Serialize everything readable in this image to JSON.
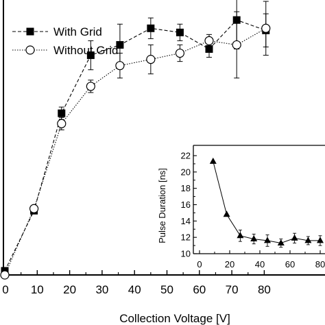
{
  "chart_data": [
    {
      "type": "line",
      "title": "",
      "xlabel": "Collection Voltage [V]",
      "ylabel": "",
      "xlim": [
        0,
        90
      ],
      "xticks": [
        0,
        10,
        20,
        30,
        40,
        50,
        60,
        70,
        80
      ],
      "xtick_labels": [
        "0",
        "10",
        "20",
        "30",
        "40",
        "50",
        "60",
        "70",
        "80"
      ],
      "ylim": [
        0,
        1.3
      ],
      "grid": false,
      "legend_position": "top-left",
      "series": [
        {
          "name": "With Grid",
          "marker": "filled-square",
          "line_style": "dashed",
          "x": [
            0,
            9,
            17.5,
            26.5,
            35.5,
            45,
            54,
            63,
            71.5,
            80.5
          ],
          "y": [
            0.02,
            0.31,
            0.78,
            1.06,
            1.11,
            1.19,
            1.17,
            1.09,
            1.23,
            1.18
          ],
          "err": [
            0,
            0.01,
            0.03,
            0.07,
            0.1,
            0.05,
            0.04,
            0.04,
            0.14,
            0.08
          ]
        },
        {
          "name": "Without Grid",
          "marker": "open-circle",
          "line_style": "dotted",
          "x": [
            0,
            9,
            17.5,
            26.5,
            35.5,
            45,
            54,
            63,
            71.5,
            80.5
          ],
          "y": [
            0.0,
            0.32,
            0.73,
            0.91,
            1.01,
            1.04,
            1.07,
            1.13,
            1.11,
            1.19
          ],
          "err": [
            0,
            0.01,
            0.03,
            0.03,
            0.06,
            0.07,
            0.04,
            0.03,
            0.16,
            0.13
          ]
        }
      ]
    },
    {
      "type": "line",
      "title": "",
      "xlabel": "",
      "ylabel": "Pulse Duration [ns]",
      "xlim": [
        0,
        87
      ],
      "xticks": [
        0,
        20,
        40,
        60,
        80
      ],
      "xtick_labels": [
        "0",
        "20",
        "40",
        "60",
        "80"
      ],
      "ylim": [
        10,
        23
      ],
      "yticks": [
        10,
        12,
        14,
        16,
        18,
        20,
        22
      ],
      "ytick_labels": [
        "10",
        "12",
        "14",
        "16",
        "18",
        "20",
        "22"
      ],
      "series": [
        {
          "name": "",
          "marker": "filled-triangle",
          "line_style": "solid",
          "x": [
            9,
            18,
            27,
            36,
            45,
            54,
            63,
            72,
            80
          ],
          "y": [
            21.3,
            14.8,
            12.2,
            11.8,
            11.6,
            11.3,
            11.9,
            11.6,
            11.6
          ],
          "err": [
            0,
            0,
            0.7,
            0.6,
            0.7,
            0.5,
            0.6,
            0.5,
            0.6
          ]
        }
      ]
    }
  ]
}
